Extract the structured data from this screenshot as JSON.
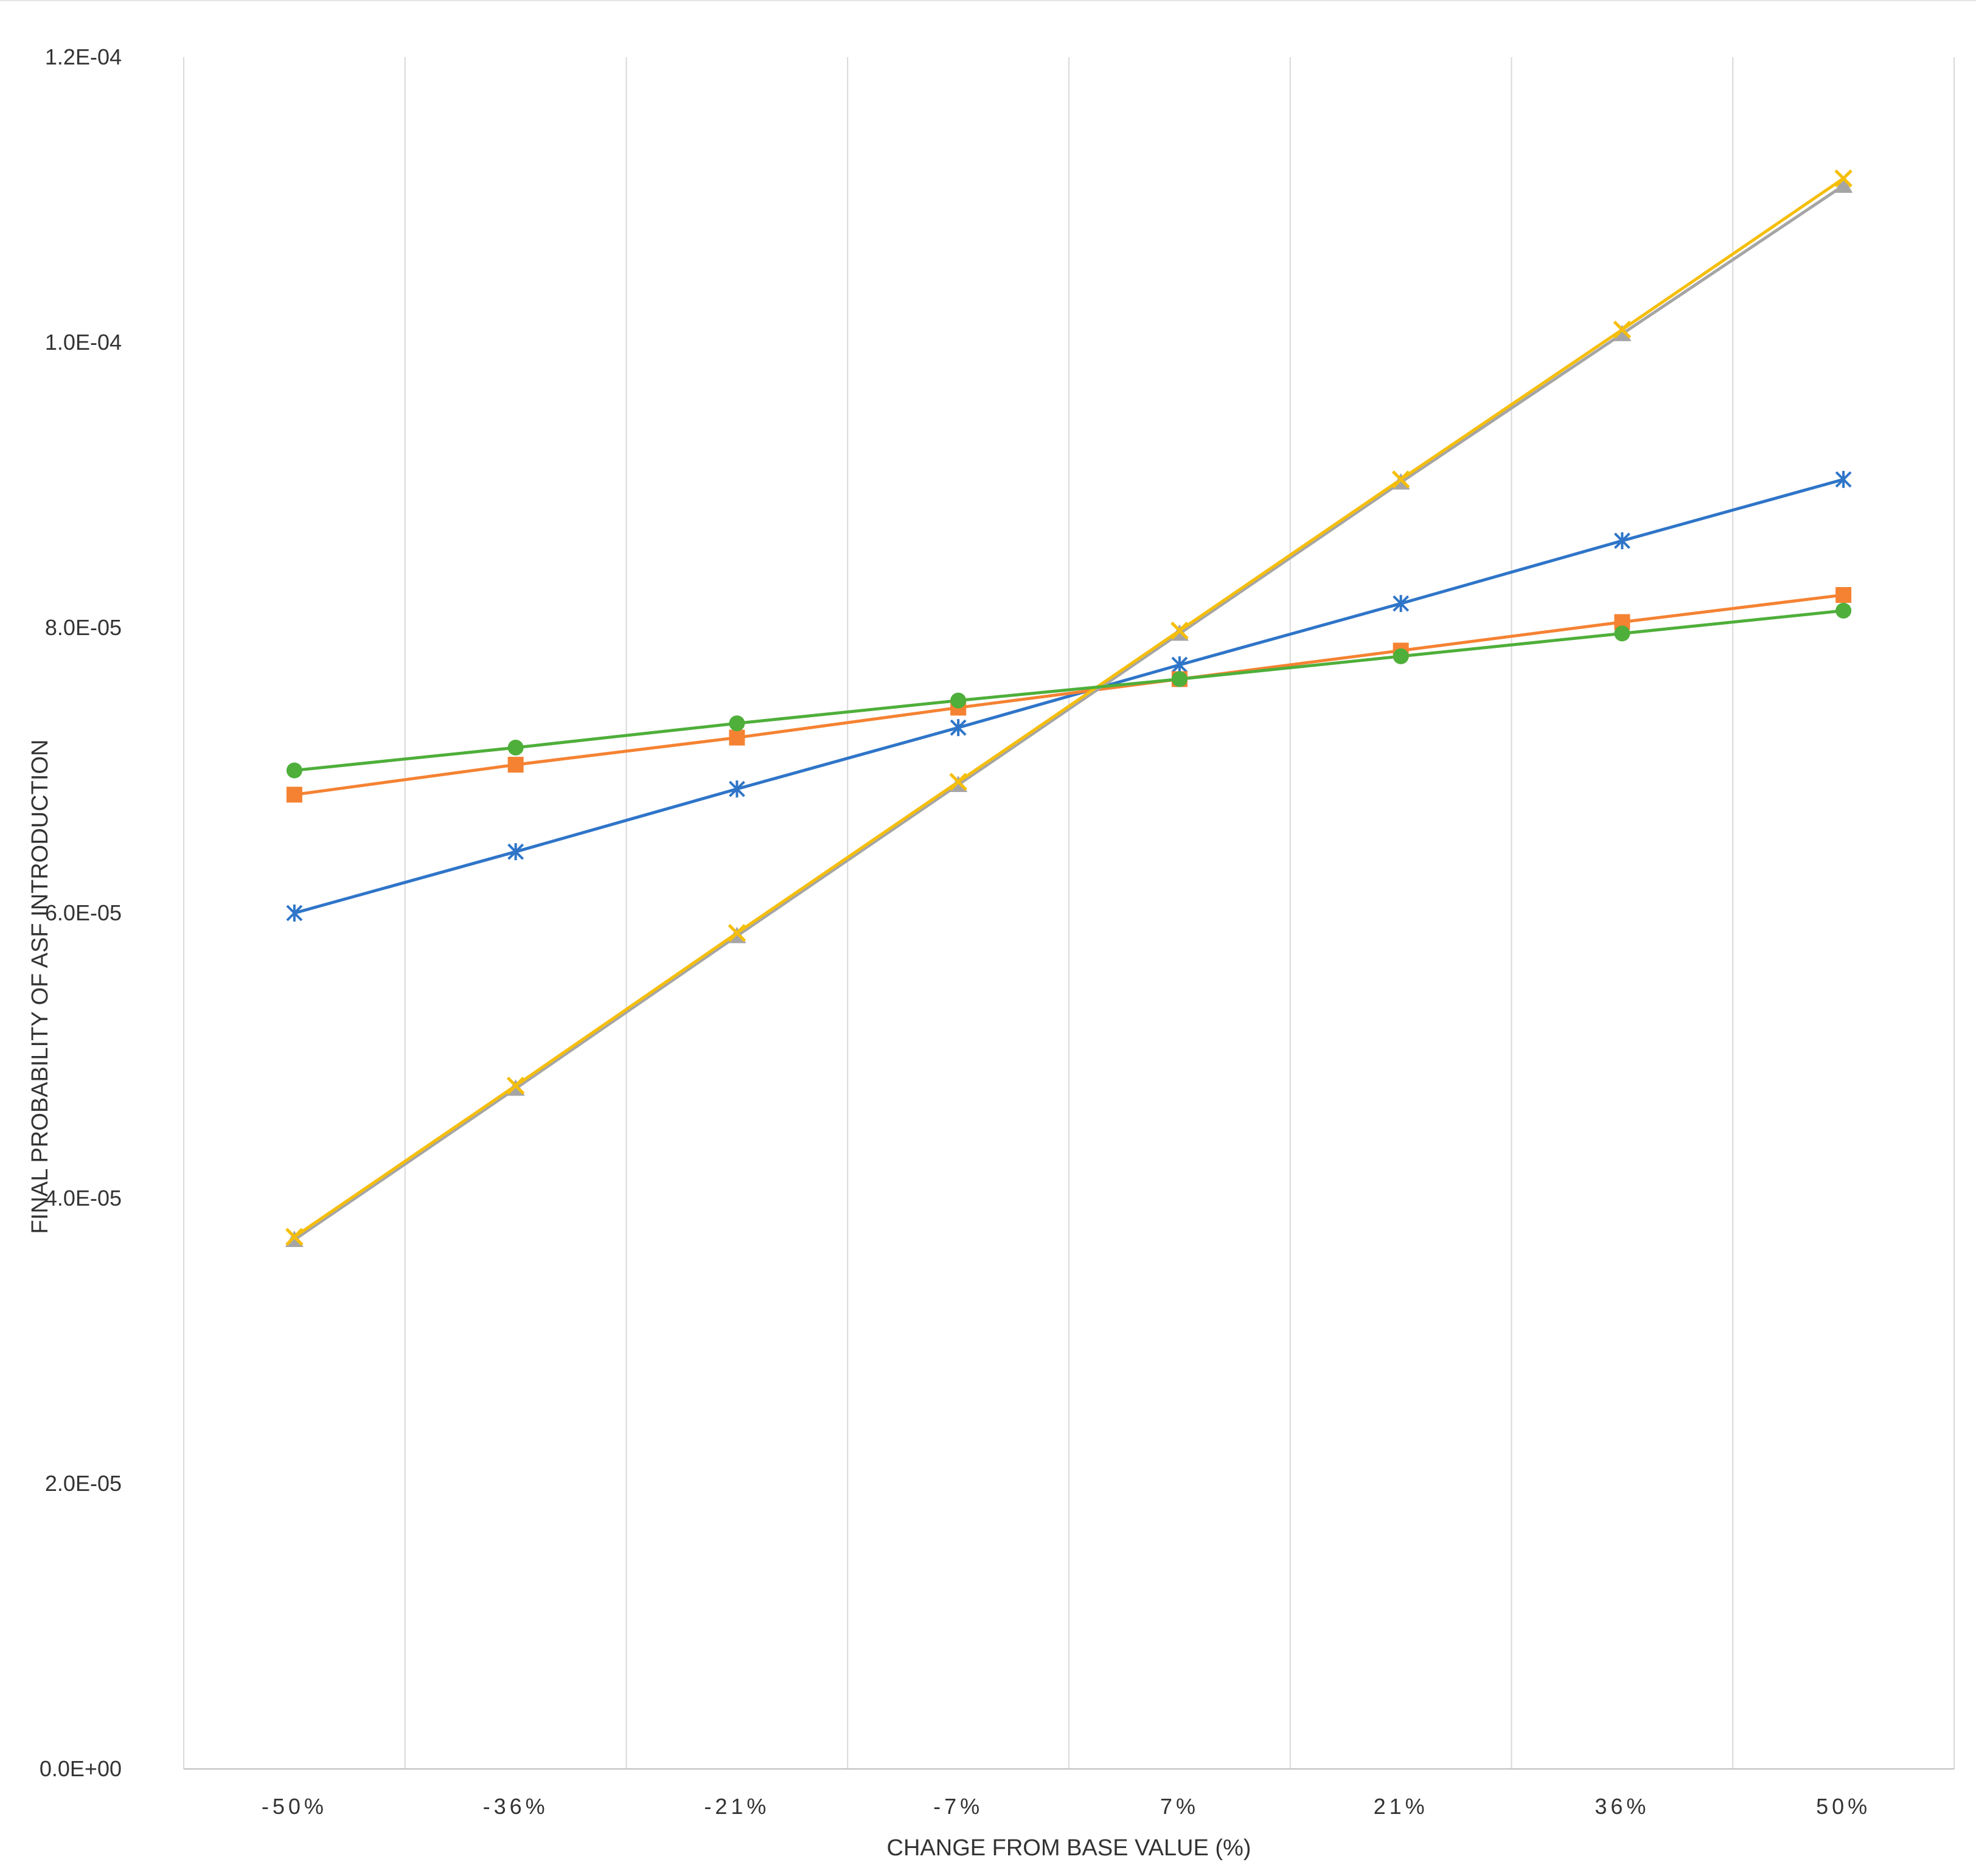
{
  "chart_data": {
    "type": "line",
    "title": "",
    "xlabel": "CHANGE FROM BASE VALUE (%)",
    "ylabel": "FINAL PROBABILITY OF ASF INTRODUCTION",
    "categories": [
      "-50%",
      "-36%",
      "-21%",
      "-7%",
      "7%",
      "21%",
      "36%",
      "50%"
    ],
    "ylim": [
      0,
      0.00012
    ],
    "yticks": [
      {
        "value": 0,
        "label": "0.0E+00"
      },
      {
        "value": 2e-05,
        "label": "2.0E-05"
      },
      {
        "value": 4e-05,
        "label": "4.0E-05"
      },
      {
        "value": 6e-05,
        "label": "6.0E-05"
      },
      {
        "value": 8e-05,
        "label": "8.0E-05"
      },
      {
        "value": 0.0001,
        "label": "1.0E-04"
      },
      {
        "value": 0.00012,
        "label": "1.2E-04"
      }
    ],
    "grid": "vertical",
    "legend": "none",
    "series": [
      {
        "color": "#2E75C8",
        "marker": "asterisk",
        "values": [
          6e-05,
          6.43e-05,
          6.87e-05,
          7.3e-05,
          7.74e-05,
          8.17e-05,
          8.61e-05,
          9.04e-05
        ]
      },
      {
        "color": "#F58232",
        "marker": "square",
        "values": [
          6.83e-05,
          7.04e-05,
          7.23e-05,
          7.44e-05,
          7.64e-05,
          7.84e-05,
          8.04e-05,
          8.23e-05
        ]
      },
      {
        "color": "#A5A5A5",
        "marker": "triangle",
        "values": [
          3.71e-05,
          4.77e-05,
          5.84e-05,
          6.9e-05,
          7.96e-05,
          9.02e-05,
          0.0001006,
          0.000111
        ]
      },
      {
        "color": "#F5BE0A",
        "marker": "x",
        "values": [
          3.73e-05,
          4.79e-05,
          5.86e-05,
          6.92e-05,
          7.98e-05,
          9.04e-05,
          0.0001009,
          0.0001115
        ]
      },
      {
        "color": "#4EAF3A",
        "marker": "circle",
        "values": [
          7e-05,
          7.16e-05,
          7.33e-05,
          7.49e-05,
          7.64e-05,
          7.8e-05,
          7.96e-05,
          8.12e-05
        ]
      }
    ]
  }
}
